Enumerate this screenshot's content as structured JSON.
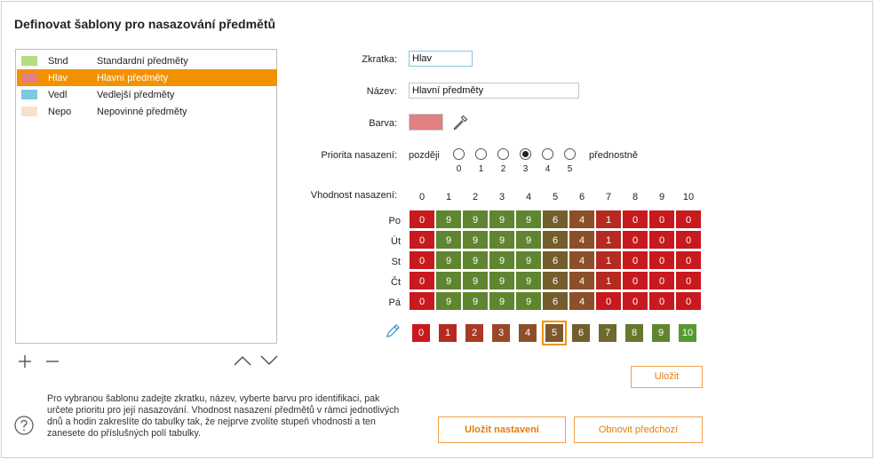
{
  "title": "Definovat šablony pro nasazování předmětů",
  "templates": [
    {
      "abbr": "Stnd",
      "name": "Standardní předměty",
      "color": "#b5dc84",
      "selected": false
    },
    {
      "abbr": "Hlav",
      "name": "Hlavní předměty",
      "color": "#e08080",
      "selected": true
    },
    {
      "abbr": "Vedl",
      "name": "Vedlejší předměty",
      "color": "#7ec8e0",
      "selected": false
    },
    {
      "abbr": "Nepo",
      "name": "Nepovinné předměty",
      "color": "#f5e2cc",
      "selected": false
    }
  ],
  "form": {
    "abbr_label": "Zkratka:",
    "abbr_value": "Hlav",
    "name_label": "Název:",
    "name_value": "Hlavní předměty",
    "color_label": "Barva:",
    "color_value": "#e08080",
    "priority_label": "Priorita nasazení:",
    "priority_low": "později",
    "priority_high": "přednostně",
    "priority_options": [
      "0",
      "1",
      "2",
      "3",
      "4",
      "5"
    ],
    "priority_selected": 3,
    "suitability_label": "Vhodnost nasazení:"
  },
  "grid": {
    "columns": [
      "0",
      "1",
      "2",
      "3",
      "4",
      "5",
      "6",
      "7",
      "8",
      "9",
      "10"
    ],
    "rows": [
      {
        "day": "Po",
        "values": [
          "0",
          "9",
          "9",
          "9",
          "9",
          "6",
          "4",
          "1",
          "0",
          "0",
          "0"
        ]
      },
      {
        "day": "Út",
        "values": [
          "0",
          "9",
          "9",
          "9",
          "9",
          "6",
          "4",
          "1",
          "0",
          "0",
          "0"
        ]
      },
      {
        "day": "St",
        "values": [
          "0",
          "9",
          "9",
          "9",
          "9",
          "6",
          "4",
          "1",
          "0",
          "0",
          "0"
        ]
      },
      {
        "day": "Čt",
        "values": [
          "0",
          "9",
          "9",
          "9",
          "9",
          "6",
          "4",
          "1",
          "0",
          "0",
          "0"
        ]
      },
      {
        "day": "Pá",
        "values": [
          "0",
          "9",
          "9",
          "9",
          "9",
          "6",
          "4",
          "0",
          "0",
          "0",
          "0"
        ]
      }
    ]
  },
  "palette": {
    "values": [
      "0",
      "1",
      "2",
      "3",
      "4",
      "5",
      "6",
      "7",
      "8",
      "9",
      "10"
    ],
    "selected": 5,
    "colors": {
      "0": "#c8191e",
      "1": "#b52b22",
      "2": "#a83a26",
      "3": "#9a4728",
      "4": "#8c4f2a",
      "5": "#7d582b",
      "6": "#735e2c",
      "7": "#6d6a2c",
      "8": "#67782e",
      "9": "#5f8530",
      "10": "#559a2f"
    }
  },
  "buttons": {
    "save": "Uložit",
    "save_settings": "Uložit nastavení",
    "restore": "Obnovit předchozí"
  },
  "help_text": "Pro vybranou šablonu zadejte zkratku, název, vyberte barvu pro identifikaci, pak určete prioritu pro její nasazování. Vhodnost nasazení předmětů v rámci jednotlivých dnů a hodin zakreslíte do tabulky tak, že nejprve zvolíte stupeň vhodnosti a ten zanesete do příslušných polí tabulky.",
  "accent": "#f39200"
}
